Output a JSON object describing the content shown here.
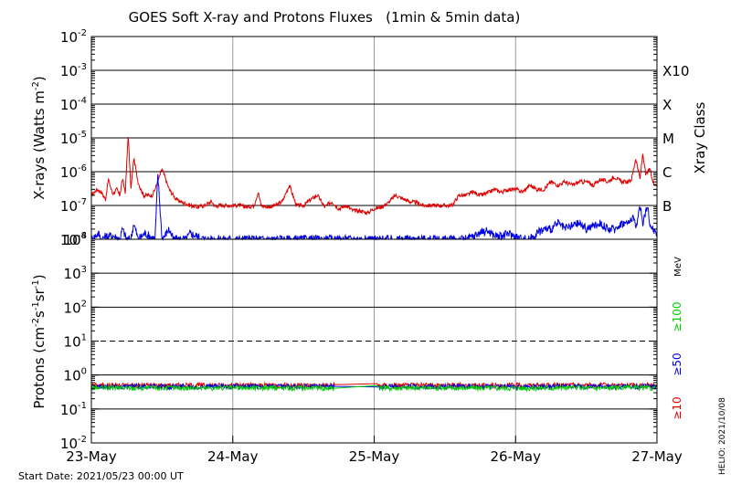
{
  "title": "GOES Soft X-ray and Protons Fluxes   (1min & 5min data)",
  "footer_start": "Start Date: 2021/05/23 00:00 UT",
  "footer_helio": "HELIO: 2021/10/08",
  "colors": {
    "red": "#e00000",
    "blue": "#0000e0",
    "green": "#00d000",
    "grid": "#999999",
    "axis": "#000000"
  },
  "chart_data": [
    {
      "type": "line",
      "panel": "X-rays",
      "ylabel": "X-rays (Watts m-2)",
      "ylabel_parts": {
        "base": "X-rays (Watts m",
        "sup": "-2",
        "end": ")"
      },
      "yscale": "log",
      "ylim": [
        1e-08,
        0.01
      ],
      "yticks": [
        {
          "value": 1e-08,
          "base": "10",
          "exp": "-8"
        },
        {
          "value": 1e-07,
          "base": "10",
          "exp": "-7"
        },
        {
          "value": 1e-06,
          "base": "10",
          "exp": "-6"
        },
        {
          "value": 1e-05,
          "base": "10",
          "exp": "-5"
        },
        {
          "value": 0.0001,
          "base": "10",
          "exp": "-4"
        },
        {
          "value": 0.001,
          "base": "10",
          "exp": "-3"
        },
        {
          "value": 0.01,
          "base": "10",
          "exp": "-2"
        }
      ],
      "right_axis_label": "Xray Class",
      "class_labels": [
        {
          "value": 0.001,
          "label": "X10"
        },
        {
          "value": 0.0001,
          "label": "X"
        },
        {
          "value": 1e-05,
          "label": "M"
        },
        {
          "value": 1e-06,
          "label": "C"
        },
        {
          "value": 1e-07,
          "label": "B"
        }
      ],
      "xlim": [
        0,
        4
      ],
      "series": [
        {
          "color": "#e00000",
          "x": [
            0.0,
            0.04,
            0.07,
            0.1,
            0.12,
            0.15,
            0.18,
            0.2,
            0.22,
            0.24,
            0.26,
            0.28,
            0.3,
            0.33,
            0.35,
            0.37,
            0.4,
            0.43,
            0.45,
            0.5,
            0.55,
            0.58,
            0.6,
            0.65,
            0.7,
            0.75,
            0.8,
            0.85,
            0.88,
            0.9,
            0.95,
            1.0,
            1.05,
            1.1,
            1.15,
            1.18,
            1.2,
            1.25,
            1.3,
            1.35,
            1.4,
            1.45,
            1.5,
            1.55,
            1.6,
            1.65,
            1.7,
            1.75,
            1.8,
            1.85,
            1.9,
            1.95,
            2.0,
            2.05,
            2.1,
            2.15,
            2.2,
            2.25,
            2.3,
            2.35,
            2.4,
            2.45,
            2.5,
            2.55,
            2.6,
            2.65,
            2.7,
            2.75,
            2.8,
            2.85,
            2.9,
            2.95,
            3.0,
            3.05,
            3.1,
            3.15,
            3.2,
            3.25,
            3.3,
            3.35,
            3.4,
            3.45,
            3.5,
            3.55,
            3.6,
            3.65,
            3.7,
            3.75,
            3.8,
            3.82,
            3.85,
            3.88,
            3.9,
            3.92,
            3.95,
            3.97,
            4.0
          ],
          "y": [
            2e-07,
            3e-07,
            2.5e-07,
            1.5e-07,
            6e-07,
            2.2e-07,
            3e-07,
            2e-07,
            6e-07,
            2.5e-07,
            1.2e-05,
            3e-07,
            2.5e-06,
            5e-07,
            3e-07,
            2e-07,
            2e-07,
            2e-07,
            3e-07,
            1.2e-06,
            3e-07,
            2e-07,
            1.5e-07,
            1.2e-07,
            1e-07,
            9e-08,
            1e-07,
            1.3e-07,
            9e-08,
            1e-07,
            1e-07,
            1e-07,
            1e-07,
            9e-08,
            1e-07,
            2.5e-07,
            1e-07,
            9e-08,
            1e-07,
            1.3e-07,
            4e-07,
            1e-07,
            1e-07,
            1.5e-07,
            2e-07,
            9e-08,
            1.3e-07,
            8e-08,
            1e-07,
            7e-08,
            7e-08,
            6e-08,
            8e-08,
            9e-08,
            1.2e-07,
            2e-07,
            1.6e-07,
            1.3e-07,
            1.2e-07,
            1e-07,
            1e-07,
            1e-07,
            1e-07,
            1e-07,
            2e-07,
            2e-07,
            2.5e-07,
            2e-07,
            2.3e-07,
            3e-07,
            2.5e-07,
            3e-07,
            3e-07,
            2.5e-07,
            4e-07,
            3e-07,
            3e-07,
            5e-07,
            4e-07,
            5e-07,
            4e-07,
            5e-07,
            5e-07,
            4e-07,
            6e-07,
            5e-07,
            7e-07,
            5e-07,
            5e-07,
            6e-07,
            2.5e-06,
            6e-07,
            3.5e-06,
            8e-07,
            1.2e-06,
            5e-07,
            4e-07
          ]
        },
        {
          "color": "#0000e0",
          "x": [
            0.0,
            0.05,
            0.07,
            0.1,
            0.15,
            0.2,
            0.22,
            0.25,
            0.28,
            0.3,
            0.33,
            0.38,
            0.42,
            0.45,
            0.47,
            0.5,
            0.55,
            0.58,
            0.62,
            0.67,
            0.7,
            0.8,
            0.9,
            1.0,
            1.1,
            1.2,
            1.3,
            1.4,
            1.5,
            1.6,
            1.7,
            1.8,
            1.9,
            2.0,
            2.1,
            2.2,
            2.3,
            2.4,
            2.5,
            2.6,
            2.65,
            2.7,
            2.75,
            2.8,
            2.85,
            2.9,
            2.95,
            3.0,
            3.05,
            3.1,
            3.15,
            3.2,
            3.25,
            3.3,
            3.35,
            3.4,
            3.45,
            3.5,
            3.55,
            3.6,
            3.65,
            3.7,
            3.75,
            3.8,
            3.83,
            3.85,
            3.88,
            3.9,
            3.93,
            3.95,
            3.97,
            4.0
          ],
          "y": [
            1e-08,
            1.5e-08,
            1e-08,
            1.2e-08,
            1.3e-08,
            1e-08,
            2e-08,
            1e-08,
            1e-08,
            3e-08,
            1e-08,
            1.5e-08,
            1.2e-08,
            1e-08,
            8e-07,
            1e-08,
            2e-08,
            1e-08,
            1e-08,
            1e-08,
            1.5e-08,
            1e-08,
            1e-08,
            1e-08,
            1e-08,
            1e-08,
            1e-08,
            1e-08,
            1e-08,
            1e-08,
            1e-08,
            1e-08,
            1e-08,
            1e-08,
            1e-08,
            1e-08,
            1e-08,
            1e-08,
            1e-08,
            1e-08,
            1e-08,
            1.2e-08,
            1.6e-08,
            1.8e-08,
            1.3e-08,
            1.2e-08,
            1.5e-08,
            1.2e-08,
            1e-08,
            1e-08,
            1.5e-08,
            2e-08,
            2e-08,
            3e-08,
            2e-08,
            2.5e-08,
            3e-08,
            2e-08,
            2.5e-08,
            3e-08,
            2e-08,
            2e-08,
            3e-08,
            3e-08,
            5e-08,
            2e-08,
            1e-07,
            3e-08,
            1e-07,
            3e-08,
            2e-08,
            1.5e-08
          ]
        }
      ]
    },
    {
      "type": "line",
      "panel": "Protons",
      "ylabel": "Protons (cm-2s-1sr-1)",
      "ylabel_parts": {
        "base": "Protons (cm",
        "s1": "-2",
        "mid1": "s",
        "s2": "-1",
        "mid2": "sr",
        "s3": "-1",
        "end": ")"
      },
      "yscale": "log",
      "ylim": [
        0.01,
        10000
      ],
      "yticks": [
        {
          "value": 0.01,
          "base": "10",
          "exp": "-2"
        },
        {
          "value": 0.1,
          "base": "10",
          "exp": "-1"
        },
        {
          "value": 1,
          "base": "10",
          "exp": "0"
        },
        {
          "value": 10,
          "base": "10",
          "exp": "1"
        },
        {
          "value": 100,
          "base": "10",
          "exp": "2"
        },
        {
          "value": 1000,
          "base": "10",
          "exp": "3"
        },
        {
          "value": 10000,
          "base": "10",
          "exp": "4"
        }
      ],
      "threshold_line": 10,
      "unit_label": "MeV",
      "energy_labels": [
        {
          "label": "≥100",
          "color": "#00d000"
        },
        {
          "label": "≥50",
          "color": "#0000e0"
        },
        {
          "label": "≥10",
          "color": "#e00000"
        }
      ],
      "xlim": [
        0,
        4
      ],
      "xticks": [
        "23-May",
        "24-May",
        "25-May",
        "26-May",
        "27-May"
      ],
      "gap": [
        1.72,
        2.02
      ],
      "series": [
        {
          "color": "#e00000",
          "base": 0.5
        },
        {
          "color": "#0000e0",
          "base": 0.46
        },
        {
          "color": "#00d000",
          "base": 0.42
        }
      ]
    }
  ]
}
